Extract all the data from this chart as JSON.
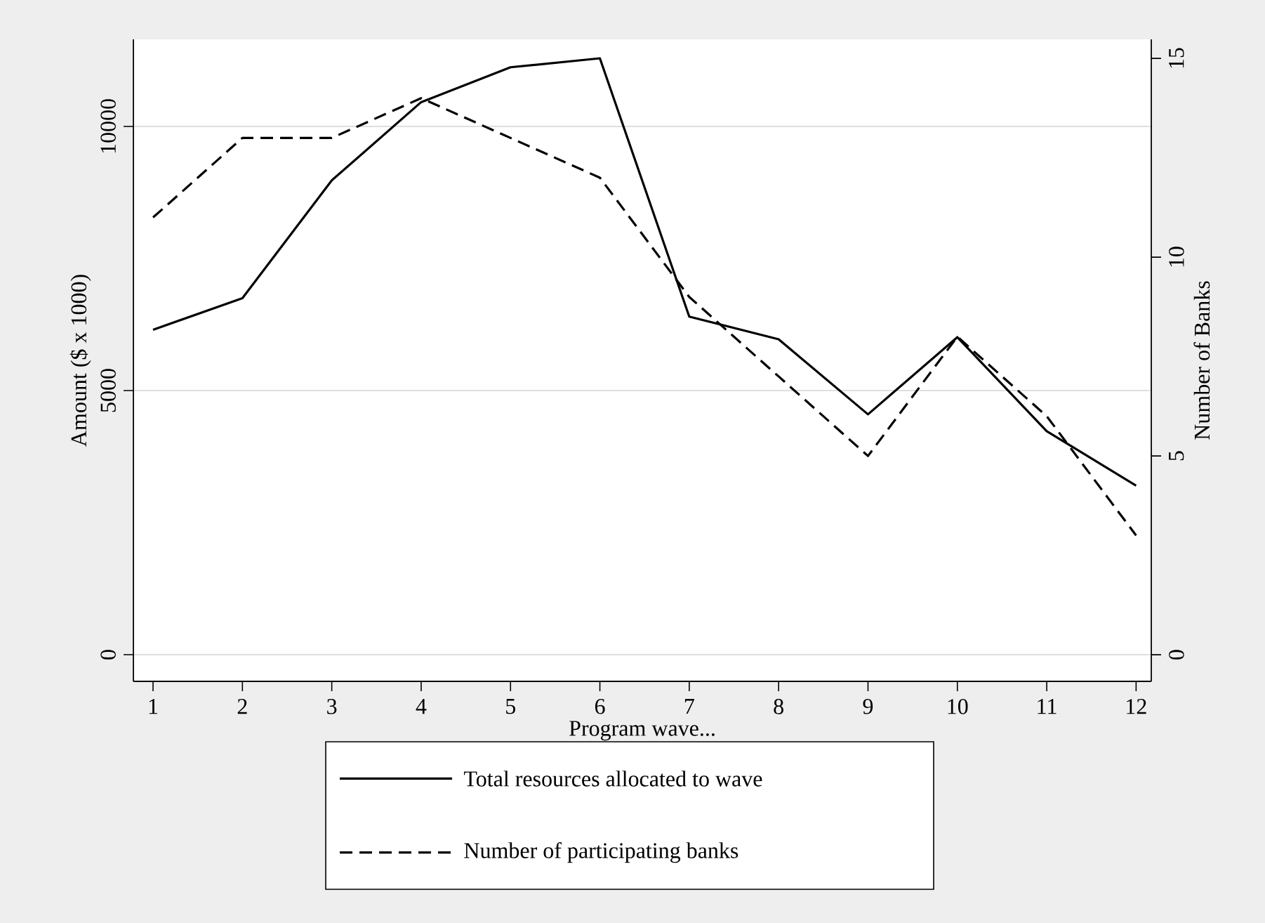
{
  "chart_data": {
    "type": "line",
    "xlabel": "Program wave...",
    "ylabel": "Amount ($ x 1000)",
    "y2label": "Number of Banks",
    "x": [
      1,
      2,
      3,
      4,
      5,
      6,
      7,
      8,
      9,
      10,
      11,
      12
    ],
    "series": [
      {
        "name": "Total resources allocated to wave",
        "color": "#000000",
        "line_style": "solid",
        "values": [
          6150,
          6750,
          8980,
          10460,
          11120,
          11290,
          6400,
          5970,
          4550,
          6010,
          4230,
          3200
        ]
      },
      {
        "name": "Number of participating banks",
        "color": "#000000",
        "line_style": "dashed",
        "axis": "y2",
        "values": [
          11,
          13,
          13,
          14,
          13,
          12,
          9,
          7,
          5,
          8,
          6,
          3
        ]
      }
    ],
    "xlim": [
      0.78,
      12.17
    ],
    "xticks": [
      1,
      2,
      3,
      4,
      5,
      6,
      7,
      8,
      9,
      10,
      11,
      12
    ],
    "ylim": [
      -505,
      11649
    ],
    "yticks": [
      0,
      5000,
      10000
    ],
    "y2lim": [
      -0.67,
      15.48
    ],
    "y2ticks": [
      0,
      5,
      10,
      15
    ],
    "grid": "y",
    "legend": "bottom",
    "marker": "none"
  }
}
